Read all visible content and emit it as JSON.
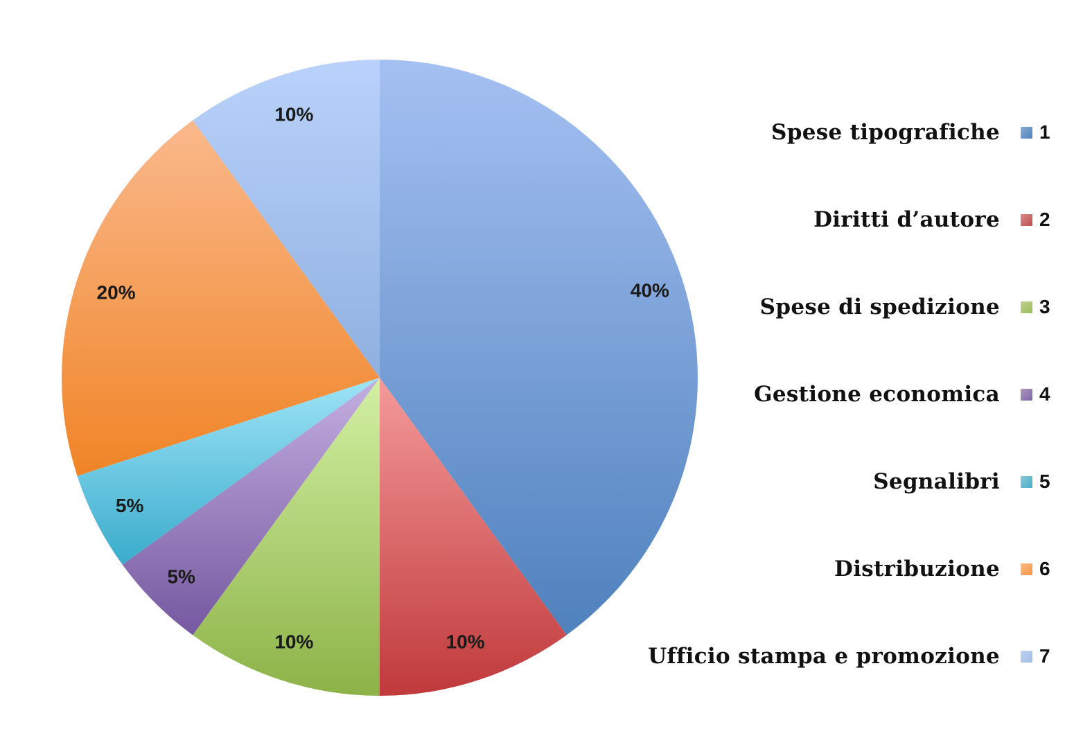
{
  "chart_data": {
    "type": "pie",
    "slices": [
      {
        "key": "1",
        "value": 40,
        "label": "40%",
        "color": "#4f81bd",
        "color_light": "#a5c0f2"
      },
      {
        "key": "2",
        "value": 10,
        "label": "10%",
        "color": "#c0393b",
        "color_light": "#f49a9a"
      },
      {
        "key": "3",
        "value": 10,
        "label": "10%",
        "color": "#8db247",
        "color_light": "#d3f0a4"
      },
      {
        "key": "4",
        "value": 5,
        "label": "5%",
        "color": "#7558a0",
        "color_light": "#c4afe0"
      },
      {
        "key": "5",
        "value": 5,
        "label": "5%",
        "color": "#3aaccc",
        "color_light": "#9ee4f7"
      },
      {
        "key": "6",
        "value": 20,
        "label": "20%",
        "color": "#f08426",
        "color_light": "#fab98c"
      },
      {
        "key": "7",
        "value": 10,
        "label": "10%",
        "color": "#8fb0e0",
        "color_light": "#bad2fb"
      }
    ],
    "legend": [
      {
        "label": "Spese tipografiche",
        "key": "1",
        "color": "#4f81bd"
      },
      {
        "label": "Diritti d’autore",
        "key": "2",
        "color": "#c0504d"
      },
      {
        "label": "Spese di spedizione",
        "key": "3",
        "color": "#9bbb59"
      },
      {
        "label": "Gestione economica",
        "key": "4",
        "color": "#8064a2"
      },
      {
        "label": "Segnalibri",
        "key": "5",
        "color": "#4bacc6"
      },
      {
        "label": "Distribuzione",
        "key": "6",
        "color": "#f79646"
      },
      {
        "label": "Ufficio stampa e promozione",
        "key": "7",
        "color": "#9fbce8"
      }
    ],
    "legend_position": "right",
    "start_angle": "top",
    "direction": "clockwise"
  }
}
